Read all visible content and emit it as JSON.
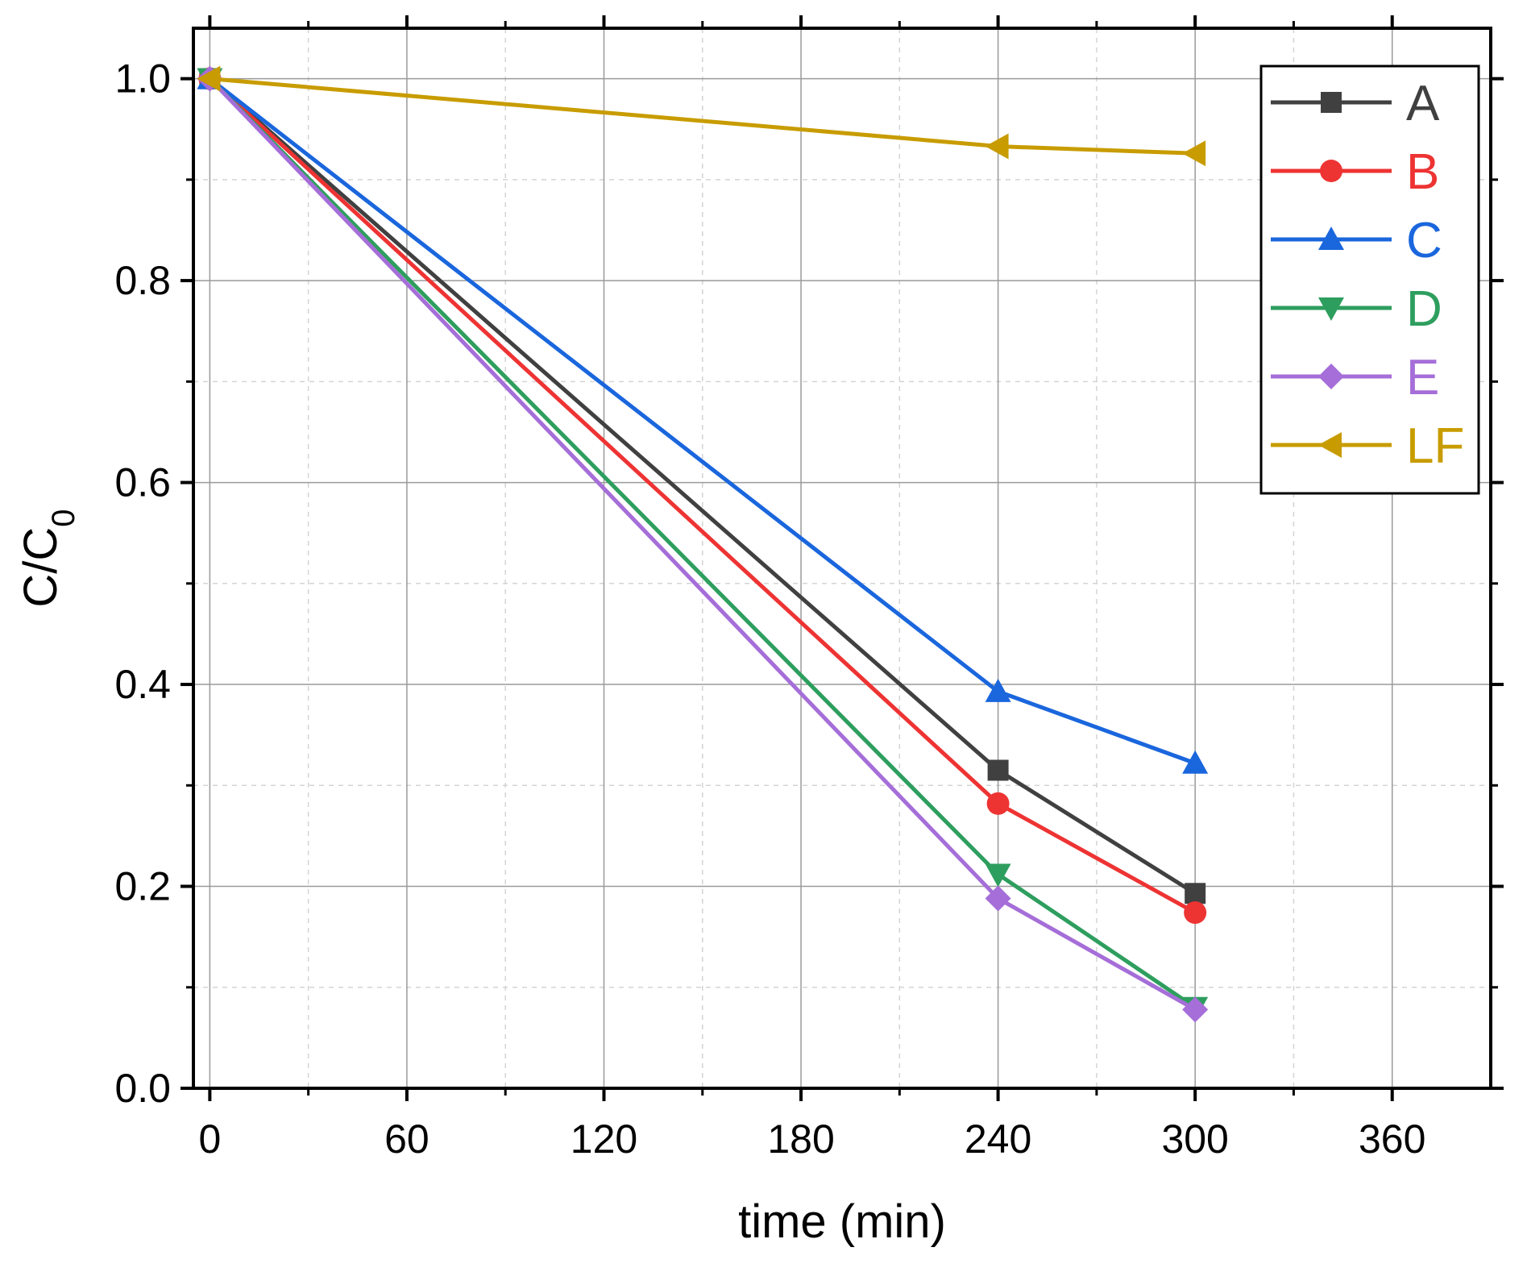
{
  "chart_data": {
    "type": "line",
    "title": "",
    "xlabel": "time (min)",
    "ylabel": "C/C",
    "ylabel_subscript": "0",
    "xlim": [
      -5,
      390
    ],
    "ylim": [
      0,
      1.05
    ],
    "xticks": [
      0,
      60,
      120,
      180,
      240,
      300,
      360
    ],
    "xtick_labels": [
      "0",
      "60",
      "120",
      "180",
      "240",
      "300",
      "360"
    ],
    "yticks": [
      0.0,
      0.2,
      0.4,
      0.6,
      0.8,
      1.0
    ],
    "ytick_labels": [
      "0.0",
      "0.2",
      "0.4",
      "0.6",
      "0.8",
      "1.0"
    ],
    "grid": true,
    "legend_position": "top-right",
    "x": [
      0,
      240,
      300
    ],
    "series": [
      {
        "name": "A",
        "color": "#404040",
        "marker": "square",
        "values": [
          1.0,
          0.315,
          0.193
        ]
      },
      {
        "name": "B",
        "color": "#ee3333",
        "marker": "circle",
        "values": [
          1.0,
          0.282,
          0.174
        ]
      },
      {
        "name": "C",
        "color": "#1a66dd",
        "marker": "triangle-up",
        "values": [
          1.0,
          0.393,
          0.322
        ]
      },
      {
        "name": "D",
        "color": "#2e9e5e",
        "marker": "triangle-down",
        "values": [
          1.0,
          0.212,
          0.08
        ]
      },
      {
        "name": "E",
        "color": "#a56ed8",
        "marker": "diamond",
        "values": [
          1.0,
          0.188,
          0.078
        ]
      },
      {
        "name": "LF",
        "color": "#c89c00",
        "marker": "triangle-left",
        "values": [
          1.0,
          0.933,
          0.926
        ]
      }
    ]
  }
}
